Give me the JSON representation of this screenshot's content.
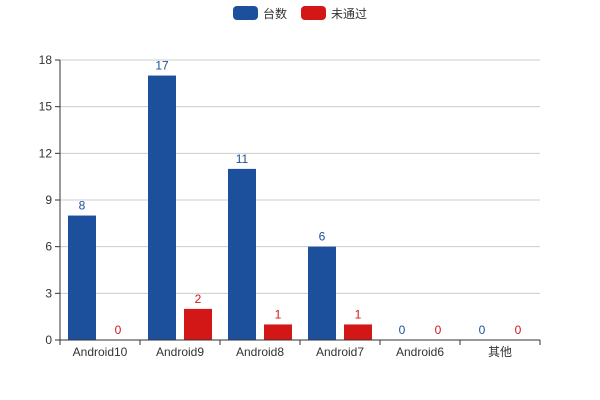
{
  "chart_data": {
    "type": "bar",
    "categories": [
      "Android10",
      "Android9",
      "Android8",
      "Android7",
      "Android6",
      "其他"
    ],
    "series": [
      {
        "name": "台数",
        "values": [
          8,
          17,
          11,
          6,
          0,
          0
        ],
        "color": "#1c4f9c"
      },
      {
        "name": "未通过",
        "values": [
          0,
          2,
          1,
          1,
          0,
          0
        ],
        "color": "#d31716"
      }
    ],
    "ylim": [
      0,
      18
    ],
    "yticks": [
      0,
      3,
      6,
      9,
      12,
      15,
      18
    ],
    "grid": true,
    "legend_position": "top-center",
    "data_labels": true
  }
}
